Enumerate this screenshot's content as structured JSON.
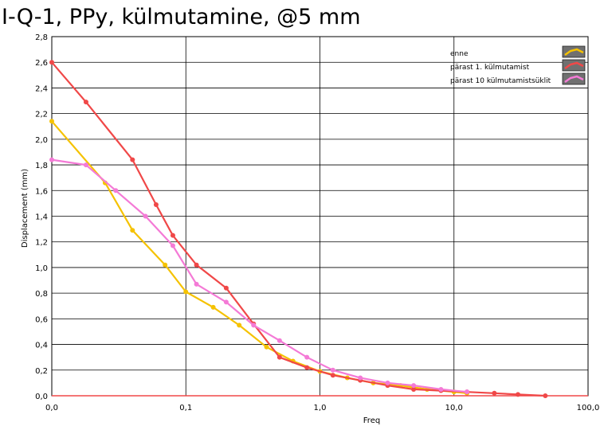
{
  "chart_data": {
    "type": "line",
    "title": "I-Q-1, PPy, külmutamine, @5 mm",
    "xlabel": "Freq",
    "ylabel": "Displacement (mm)",
    "xscale": "log",
    "xlim": [
      0.01,
      100
    ],
    "ylim": [
      0,
      2.8
    ],
    "xticks": [
      0.01,
      0.1,
      1,
      10,
      100
    ],
    "xtick_labels": [
      "0,0",
      "0,1",
      "1,0",
      "10,0",
      "100,0"
    ],
    "yticks": [
      0,
      0.2,
      0.4,
      0.6,
      0.8,
      1.0,
      1.2,
      1.4,
      1.6,
      1.8,
      2.0,
      2.2,
      2.4,
      2.6,
      2.8
    ],
    "ytick_labels": [
      "0,0",
      "0,2",
      "0,4",
      "0,6",
      "0,8",
      "1,0",
      "1,2",
      "1,4",
      "1,6",
      "1,8",
      "2,0",
      "2,2",
      "2,4",
      "2,6",
      "2,8"
    ],
    "grid": true,
    "legend_position": "top-right",
    "series": [
      {
        "name": "enne",
        "color": "#f5c200",
        "x": [
          0.01,
          0.025,
          0.04,
          0.07,
          0.1,
          0.16,
          0.25,
          0.4,
          0.63,
          1.0,
          1.6,
          2.5,
          4.0,
          6.3,
          10,
          12.5
        ],
        "y": [
          2.14,
          1.66,
          1.29,
          1.02,
          0.81,
          0.69,
          0.55,
          0.38,
          0.27,
          0.19,
          0.14,
          0.1,
          0.08,
          0.05,
          0.03,
          0.02
        ]
      },
      {
        "name": "pärast 1. külmutamist",
        "color": "#f04848",
        "x": [
          0.01,
          0.018,
          0.04,
          0.06,
          0.08,
          0.12,
          0.2,
          0.32,
          0.5,
          0.8,
          1.25,
          2.0,
          3.2,
          5.0,
          8.0,
          12.5,
          20,
          30,
          48
        ],
        "y": [
          2.6,
          2.29,
          1.84,
          1.49,
          1.25,
          1.02,
          0.84,
          0.56,
          0.3,
          0.22,
          0.16,
          0.12,
          0.08,
          0.05,
          0.04,
          0.03,
          0.02,
          0.01,
          0.0
        ]
      },
      {
        "name": "pärast 10 külmutamistsüklit",
        "color": "#f47ad6",
        "x": [
          0.01,
          0.018,
          0.03,
          0.05,
          0.08,
          0.12,
          0.2,
          0.32,
          0.5,
          0.8,
          1.25,
          2.0,
          3.2,
          5.0,
          8.0,
          12.5
        ],
        "y": [
          1.84,
          1.8,
          1.6,
          1.4,
          1.17,
          0.87,
          0.73,
          0.55,
          0.43,
          0.3,
          0.2,
          0.14,
          0.1,
          0.08,
          0.05,
          0.03
        ]
      }
    ]
  }
}
